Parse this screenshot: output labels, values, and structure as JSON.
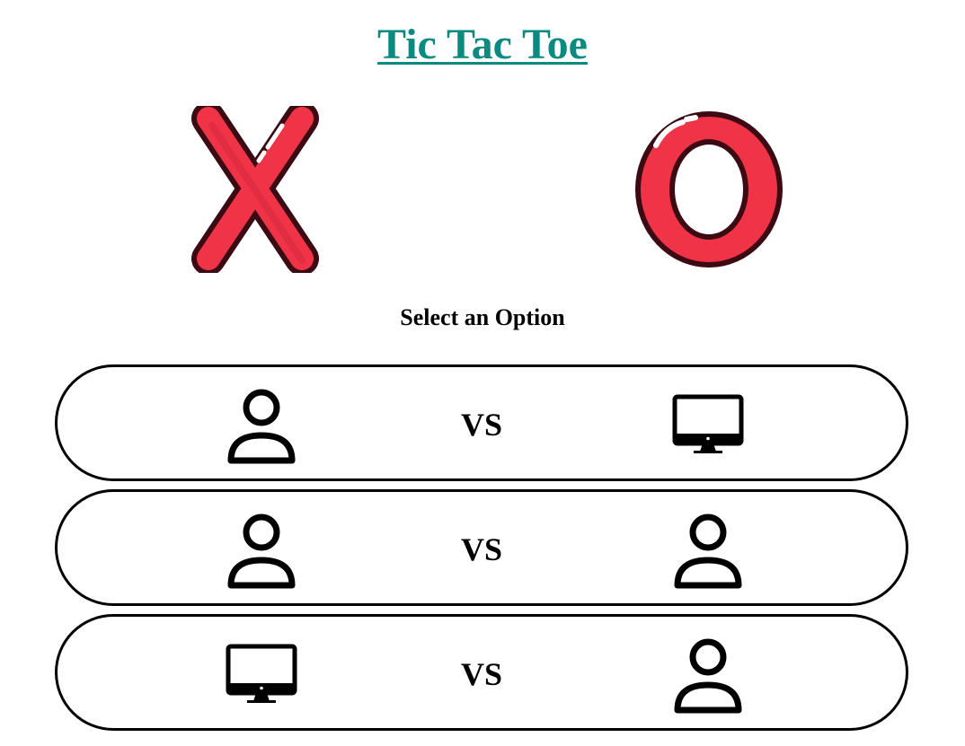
{
  "header": {
    "title": "Tic Tac Toe"
  },
  "logos": [
    {
      "name": "x-logo-icon"
    },
    {
      "name": "o-logo-icon"
    }
  ],
  "prompt": {
    "text": "Select an Option"
  },
  "options": [
    {
      "left": "user-icon",
      "vs": "VS",
      "right": "computer-icon"
    },
    {
      "left": "user-icon",
      "vs": "VS",
      "right": "user-icon"
    },
    {
      "left": "computer-icon",
      "vs": "VS",
      "right": "user-icon"
    }
  ],
  "colors": {
    "title": "#0b8a82",
    "logo_fill": "#f03347",
    "logo_outline": "#3b0a12",
    "border": "#000000"
  }
}
